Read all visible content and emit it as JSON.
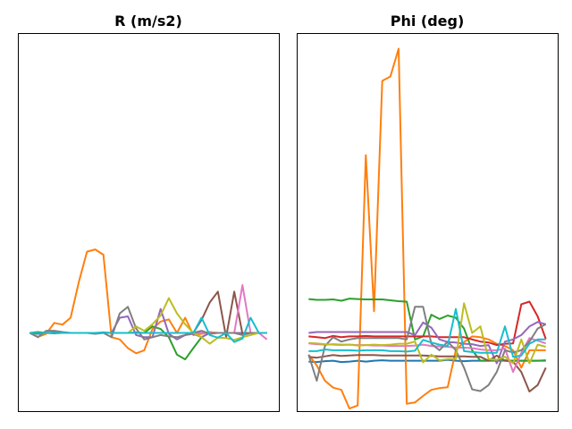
{
  "chart_data": [
    {
      "type": "line",
      "title": "R (m/s2)",
      "xlabel": "",
      "ylabel": "",
      "grid": false,
      "axis_ticks_visible": false,
      "x": [
        0,
        1,
        2,
        3,
        4,
        5,
        6,
        7,
        8,
        9,
        10,
        11,
        12,
        13,
        14,
        15,
        16,
        17,
        18,
        19,
        20,
        21,
        22,
        23,
        24,
        25,
        26,
        27,
        28,
        29
      ],
      "ylim": [
        0,
        87
      ],
      "series": [
        {
          "color": "#1f77b4",
          "values": [
            18.0,
            17.8,
            18.0,
            18.1,
            18.0,
            18.0,
            18.0,
            18.0,
            18.0,
            18.1,
            18.0,
            18.0,
            18.0,
            18.1,
            18.0,
            18.0,
            18.0,
            18.0,
            18.0,
            18.0,
            18.0,
            18.0,
            18.0,
            18.0,
            18.0,
            18.0,
            18.0,
            18.0,
            18.0,
            18.0
          ]
        },
        {
          "color": "#ff7f0e",
          "values": [
            18.0,
            17.1,
            17.8,
            20.3,
            19.9,
            21.5,
            29.7,
            36.7,
            37.2,
            36.0,
            17.0,
            16.5,
            14.5,
            13.3,
            14.0,
            18.9,
            20.6,
            21.1,
            18.0,
            21.5,
            17.5,
            17.8,
            18.2,
            18.0,
            18.0,
            18.0,
            18.0,
            18.0,
            18.0,
            18.0
          ]
        },
        {
          "color": "#2ca02c",
          "values": [
            18.0,
            18.2,
            18.0,
            17.9,
            18.0,
            18.0,
            18.0,
            18.0,
            18.0,
            18.0,
            18.0,
            18.0,
            18.0,
            18.0,
            18.0,
            19.5,
            18.9,
            17.0,
            13.0,
            11.9,
            14.5,
            17.0,
            18.0,
            18.0,
            18.0,
            18.0,
            18.0,
            18.0,
            18.0,
            18.0
          ]
        },
        {
          "color": "#d62728",
          "values": [
            18.0,
            18.0,
            18.0,
            18.0,
            18.0,
            18.0,
            18.0,
            18.0,
            18.0,
            18.0,
            18.0,
            18.0,
            18.0,
            18.0,
            18.0,
            18.0,
            18.0,
            18.0,
            18.0,
            18.0,
            18.0,
            18.0,
            18.0,
            18.0,
            18.0,
            18.0,
            18.0,
            18.0,
            18.0,
            18.0
          ]
        },
        {
          "color": "#9467bd",
          "values": [
            18.0,
            18.0,
            18.0,
            18.0,
            18.0,
            18.0,
            18.0,
            18.0,
            18.0,
            18.0,
            18.0,
            21.5,
            21.8,
            17.5,
            17.0,
            17.0,
            23.5,
            17.8,
            16.5,
            17.5,
            17.8,
            17.0,
            18.0,
            18.0,
            18.0,
            18.0,
            18.0,
            18.0,
            18.0,
            18.0
          ]
        },
        {
          "color": "#8c564b",
          "values": [
            18.0,
            18.0,
            18.0,
            18.0,
            18.0,
            18.0,
            18.0,
            18.0,
            18.0,
            18.0,
            18.0,
            18.0,
            18.0,
            18.0,
            18.0,
            18.0,
            18.0,
            18.0,
            18.0,
            18.0,
            18.0,
            21.0,
            25.0,
            27.5,
            17.0,
            27.5,
            17.8,
            18.0,
            18.0,
            18.0
          ]
        },
        {
          "color": "#e377c2",
          "values": [
            18.0,
            18.0,
            18.0,
            18.0,
            18.0,
            18.0,
            18.0,
            18.0,
            18.0,
            18.0,
            18.0,
            18.0,
            18.0,
            18.0,
            18.0,
            18.0,
            18.0,
            18.0,
            18.0,
            18.0,
            18.0,
            18.0,
            18.0,
            18.0,
            18.0,
            18.0,
            29.0,
            18.0,
            18.0,
            16.5
          ]
        },
        {
          "color": "#7f7f7f",
          "values": [
            18.0,
            17.0,
            18.5,
            18.5,
            18.2,
            18.0,
            18.0,
            18.0,
            17.8,
            18.0,
            17.0,
            22.5,
            24.0,
            19.0,
            16.5,
            17.0,
            17.5,
            17.2,
            17.0,
            17.5,
            18.0,
            18.5,
            17.8,
            18.0,
            18.0,
            18.0,
            17.5,
            18.0,
            18.0,
            18.0
          ]
        },
        {
          "color": "#bcbd22",
          "values": [
            18.0,
            18.0,
            18.0,
            18.0,
            18.0,
            18.0,
            18.0,
            18.0,
            18.0,
            18.0,
            18.0,
            18.0,
            18.0,
            19.5,
            18.5,
            20.0,
            22.0,
            26.0,
            22.5,
            20.0,
            18.0,
            17.0,
            15.5,
            16.9,
            16.8,
            16.4,
            17.0,
            17.5,
            18.0,
            18.0
          ]
        },
        {
          "color": "#17becf",
          "values": [
            18.0,
            18.0,
            18.0,
            18.0,
            18.0,
            18.0,
            18.0,
            18.0,
            18.0,
            18.0,
            18.0,
            18.0,
            18.0,
            18.0,
            18.0,
            18.0,
            18.0,
            18.0,
            18.0,
            18.0,
            18.0,
            21.5,
            17.5,
            16.9,
            18.0,
            15.9,
            16.7,
            21.5,
            18.0,
            18.0
          ]
        }
      ]
    },
    {
      "type": "line",
      "title": "Phi (deg)",
      "xlabel": "",
      "ylabel": "",
      "grid": false,
      "axis_ticks_visible": false,
      "x": [
        0,
        1,
        2,
        3,
        4,
        5,
        6,
        7,
        8,
        9,
        10,
        11,
        12,
        13,
        14,
        15,
        16,
        17,
        18,
        19,
        20,
        21,
        22,
        23,
        24,
        25,
        26,
        27,
        28,
        29
      ],
      "ylim": [
        0,
        87
      ],
      "series": [
        {
          "color": "#1f77b4",
          "values": [
            11.4,
            11.3,
            11.5,
            11.6,
            11.3,
            11.4,
            11.6,
            11.4,
            11.6,
            11.7,
            11.6,
            11.6,
            11.6,
            11.6,
            11.6,
            11.6,
            11.6,
            11.8,
            11.6,
            11.5,
            11.6,
            11.6,
            11.6,
            11.8,
            11.7,
            11.6,
            11.6,
            11.6,
            11.6,
            11.7
          ]
        },
        {
          "color": "#ff7f0e",
          "values": [
            13.0,
            10.5,
            7.0,
            5.4,
            4.9,
            0.6,
            1.3,
            58.9,
            23.0,
            76.0,
            77.0,
            83.4,
            1.7,
            2.0,
            3.5,
            4.9,
            5.3,
            5.5,
            14.0,
            15.9,
            17.2,
            17.0,
            16.5,
            15.5,
            15.0,
            14.0,
            10.0,
            14.0,
            14.0,
            14.0
          ]
        },
        {
          "color": "#2ca02c",
          "values": [
            25.8,
            25.6,
            25.6,
            25.7,
            25.4,
            25.9,
            25.8,
            25.7,
            25.7,
            25.7,
            25.5,
            25.3,
            25.2,
            16.5,
            17.2,
            22.2,
            21.2,
            22.0,
            21.5,
            19.0,
            14.0,
            11.6,
            11.6,
            11.6,
            11.6,
            11.6,
            11.6,
            11.6,
            11.6,
            11.6
          ]
        },
        {
          "color": "#d62728",
          "values": [
            17.2,
            17.0,
            16.8,
            17.3,
            17.0,
            17.2,
            17.2,
            17.3,
            17.2,
            17.2,
            17.2,
            17.2,
            17.2,
            17.2,
            17.2,
            17.2,
            17.0,
            17.0,
            17.0,
            17.0,
            16.5,
            16.0,
            15.8,
            15.2,
            15.5,
            15.6,
            24.6,
            25.2,
            21.8,
            16.6
          ]
        },
        {
          "color": "#9467bd",
          "values": [
            18.0,
            18.2,
            18.2,
            18.2,
            18.2,
            18.2,
            18.2,
            18.2,
            18.2,
            18.2,
            18.2,
            18.2,
            18.2,
            17.5,
            20.4,
            19.2,
            16.5,
            15.9,
            15.8,
            15.5,
            15.4,
            15.0,
            15.2,
            11.0,
            16.0,
            16.5,
            17.5,
            19.5,
            20.5,
            20.0
          ]
        },
        {
          "color": "#8c564b",
          "values": [
            12.5,
            12.3,
            12.6,
            12.9,
            12.7,
            12.8,
            12.9,
            12.9,
            12.9,
            12.8,
            12.8,
            12.8,
            12.8,
            12.8,
            12.8,
            12.7,
            12.6,
            12.6,
            12.6,
            12.6,
            12.5,
            12.5,
            11.6,
            12.8,
            11.6,
            11.4,
            9.0,
            4.5,
            6.0,
            10.0
          ]
        },
        {
          "color": "#e377c2",
          "values": [
            15.6,
            15.4,
            15.3,
            15.4,
            15.3,
            15.3,
            15.2,
            15.2,
            15.1,
            15.1,
            15.0,
            15.0,
            15.0,
            15.1,
            15.3,
            15.0,
            14.9,
            14.8,
            14.6,
            14.6,
            14.5,
            14.2,
            14.0,
            14.0,
            14.4,
            9.0,
            13.4,
            16.8,
            16.2,
            15.6
          ]
        },
        {
          "color": "#7f7f7f",
          "values": [
            13.0,
            7.0,
            15.0,
            17.0,
            16.0,
            16.5,
            16.8,
            16.8,
            16.8,
            16.8,
            16.8,
            16.8,
            16.5,
            24.0,
            24.0,
            15.5,
            14.0,
            16.0,
            14.0,
            10.0,
            5.0,
            4.6,
            6.0,
            9.0,
            14.0,
            13.5,
            14.0,
            16.0,
            19.0,
            20.0
          ]
        },
        {
          "color": "#bcbd22",
          "values": [
            15.7,
            15.6,
            15.4,
            15.3,
            15.2,
            15.3,
            15.1,
            15.2,
            15.3,
            15.2,
            15.3,
            15.5,
            15.5,
            16.0,
            11.2,
            13.0,
            11.7,
            12.0,
            12.0,
            24.8,
            18.0,
            19.5,
            12.0,
            11.8,
            12.5,
            11.0,
            16.5,
            11.0,
            15.3,
            14.8
          ]
        },
        {
          "color": "#17becf",
          "values": [
            13.8,
            13.8,
            14.2,
            14.0,
            14.0,
            14.0,
            13.9,
            14.0,
            14.0,
            14.0,
            13.8,
            13.8,
            13.7,
            13.9,
            16.4,
            15.8,
            15.3,
            15.0,
            23.5,
            13.8,
            13.6,
            13.4,
            13.4,
            13.4,
            19.5,
            12.5,
            12.8,
            15.5,
            16.5,
            16.5
          ]
        }
      ]
    }
  ]
}
